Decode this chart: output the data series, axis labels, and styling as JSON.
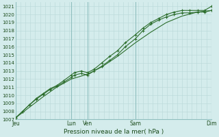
{
  "xlabel": "Pression niveau de la mer( hPa )",
  "ylim": [
    1007,
    1021.5
  ],
  "yticks": [
    1007,
    1008,
    1009,
    1010,
    1011,
    1012,
    1013,
    1014,
    1015,
    1016,
    1017,
    1018,
    1019,
    1020,
    1021
  ],
  "day_labels": [
    "Jeu",
    "Lun",
    "Ven",
    "Sam",
    "Dim"
  ],
  "day_positions": [
    0.0,
    2.84,
    3.67,
    6.12,
    10.0
  ],
  "xlim": [
    0.0,
    10.0
  ],
  "bg_color": "#d4ecec",
  "grid_minor_color": "#b8d8d8",
  "grid_major_color": "#8fbfbf",
  "line_color": "#2d6e2d",
  "line1_x": [
    0.0,
    0.35,
    0.7,
    1.05,
    1.4,
    1.75,
    2.1,
    2.45,
    2.84,
    3.0,
    3.35,
    3.67,
    4.0,
    4.4,
    4.8,
    5.2,
    5.6,
    6.12,
    6.5,
    6.9,
    7.3,
    7.7,
    8.1,
    8.5,
    8.9,
    9.3,
    9.65,
    10.0
  ],
  "line1_y": [
    1007.2,
    1008.0,
    1008.8,
    1009.6,
    1010.2,
    1010.8,
    1011.2,
    1011.8,
    1012.5,
    1012.8,
    1013.0,
    1012.8,
    1013.2,
    1014.0,
    1014.8,
    1015.5,
    1016.5,
    1017.5,
    1018.3,
    1019.0,
    1019.5,
    1020.0,
    1020.3,
    1020.5,
    1020.5,
    1020.5,
    1020.5,
    1021.0
  ],
  "line2_x": [
    0.0,
    0.35,
    0.7,
    1.05,
    1.4,
    1.75,
    2.1,
    2.45,
    2.84,
    3.0,
    3.35,
    3.67,
    4.0,
    4.4,
    4.8,
    5.2,
    5.6,
    6.12,
    6.5,
    6.9,
    7.3,
    7.7,
    8.1,
    8.5,
    8.9,
    9.3,
    9.65,
    10.0
  ],
  "line2_y": [
    1007.2,
    1008.0,
    1008.8,
    1009.5,
    1010.1,
    1010.7,
    1011.1,
    1011.6,
    1012.2,
    1012.5,
    1012.7,
    1012.5,
    1013.0,
    1013.6,
    1014.3,
    1015.0,
    1016.0,
    1017.0,
    1018.0,
    1018.8,
    1019.3,
    1019.7,
    1020.0,
    1020.2,
    1020.2,
    1020.3,
    1020.3,
    1020.5
  ],
  "line3_x": [
    0.0,
    0.7,
    1.4,
    2.1,
    2.84,
    3.67,
    4.4,
    5.2,
    6.12,
    6.9,
    7.7,
    8.5,
    9.3,
    10.0
  ],
  "line3_y": [
    1007.2,
    1008.5,
    1009.8,
    1011.0,
    1012.0,
    1012.6,
    1013.5,
    1014.8,
    1016.5,
    1017.8,
    1019.0,
    1019.8,
    1020.3,
    1020.5
  ]
}
